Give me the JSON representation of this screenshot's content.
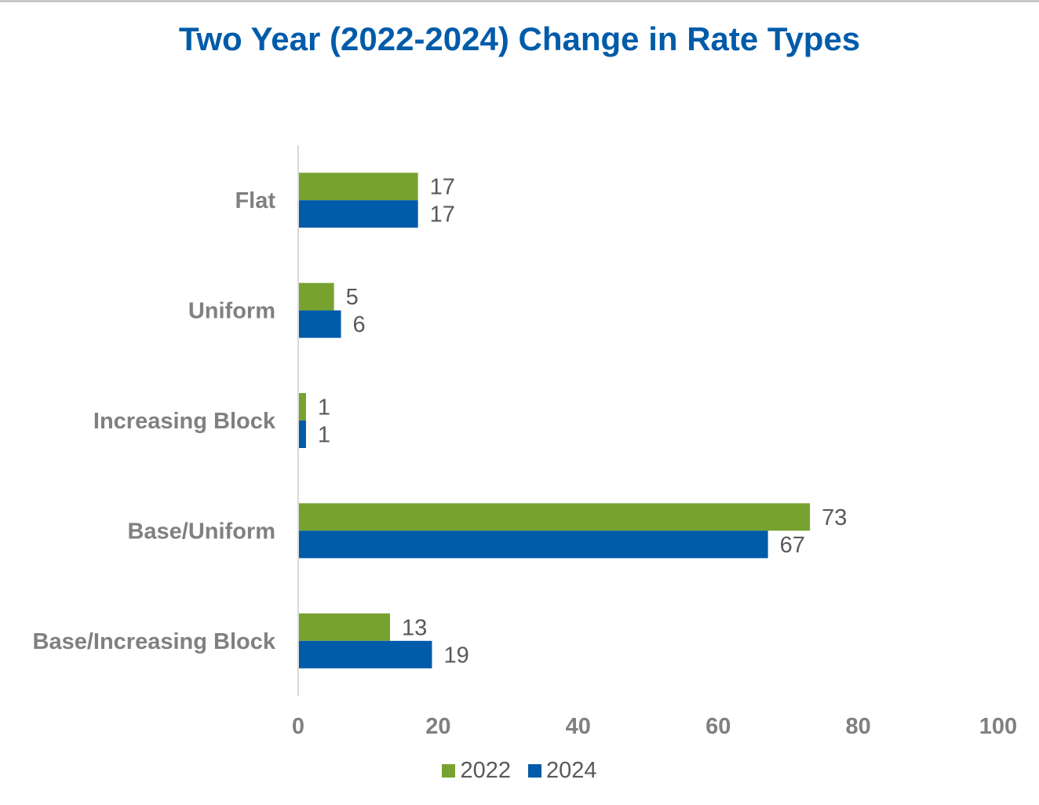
{
  "chart_data": {
    "type": "bar",
    "orientation": "horizontal",
    "title": "Two Year (2022-2024) Change in Rate Types",
    "categories": [
      "Flat",
      "Uniform",
      "Increasing Block",
      "Base/Uniform",
      "Base/Increasing Block"
    ],
    "series": [
      {
        "name": "2022",
        "color": "#78a22f",
        "values": [
          17,
          5,
          1,
          73,
          13
        ]
      },
      {
        "name": "2024",
        "color": "#005ba9",
        "values": [
          17,
          6,
          1,
          67,
          19
        ]
      }
    ],
    "xlim": [
      0,
      100
    ],
    "xticks": [
      "0",
      "20",
      "40",
      "60",
      "80",
      "100"
    ],
    "grid": false,
    "legend_position": "bottom"
  }
}
